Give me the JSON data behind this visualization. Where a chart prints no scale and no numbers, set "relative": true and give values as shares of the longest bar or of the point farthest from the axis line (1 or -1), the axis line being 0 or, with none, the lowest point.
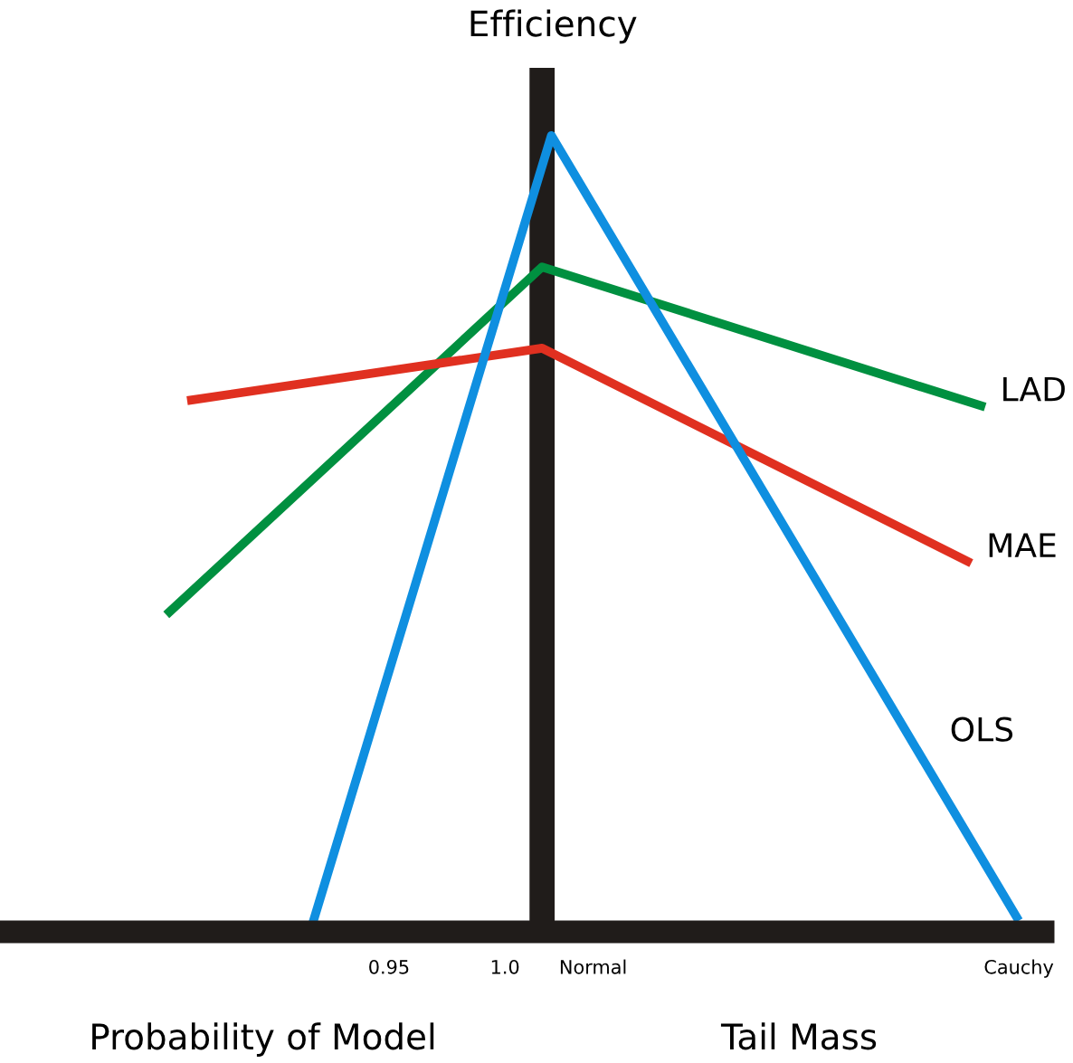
{
  "chart_data": {
    "type": "line",
    "title": "Efficiency",
    "relative": true,
    "annotations": [
      "Probability of Model",
      "Tail Mass"
    ],
    "xlim": [
      0.787,
      1.232
    ],
    "xticks": [
      0.95,
      {
        "value": 1.0,
        "label": "1.0"
      },
      {
        "value": 1.038,
        "label": "Normal"
      },
      {
        "value": 1.2215,
        "label": "Cauchy"
      }
    ],
    "series": [
      {
        "name": "LAD",
        "color": "#009040",
        "x": [
          0.854,
          1.016,
          1.207
        ],
        "values": [
          0.398,
          0.835,
          0.659
        ]
      },
      {
        "name": "MAE",
        "color": "#e03020",
        "x": [
          0.863,
          1.016,
          1.201
        ],
        "values": [
          0.667,
          0.733,
          0.463
        ]
      },
      {
        "name": "OLS",
        "color": "#0f8fe0",
        "x": [
          0.916,
          1.02,
          1.2215
        ],
        "values": [
          0.0,
          1.0,
          0.014
        ]
      }
    ],
    "ref_lines": [
      {
        "axis": "x",
        "value": 1.016,
        "color": "#201c1a"
      }
    ],
    "grid": false,
    "tick_labels": "x"
  }
}
